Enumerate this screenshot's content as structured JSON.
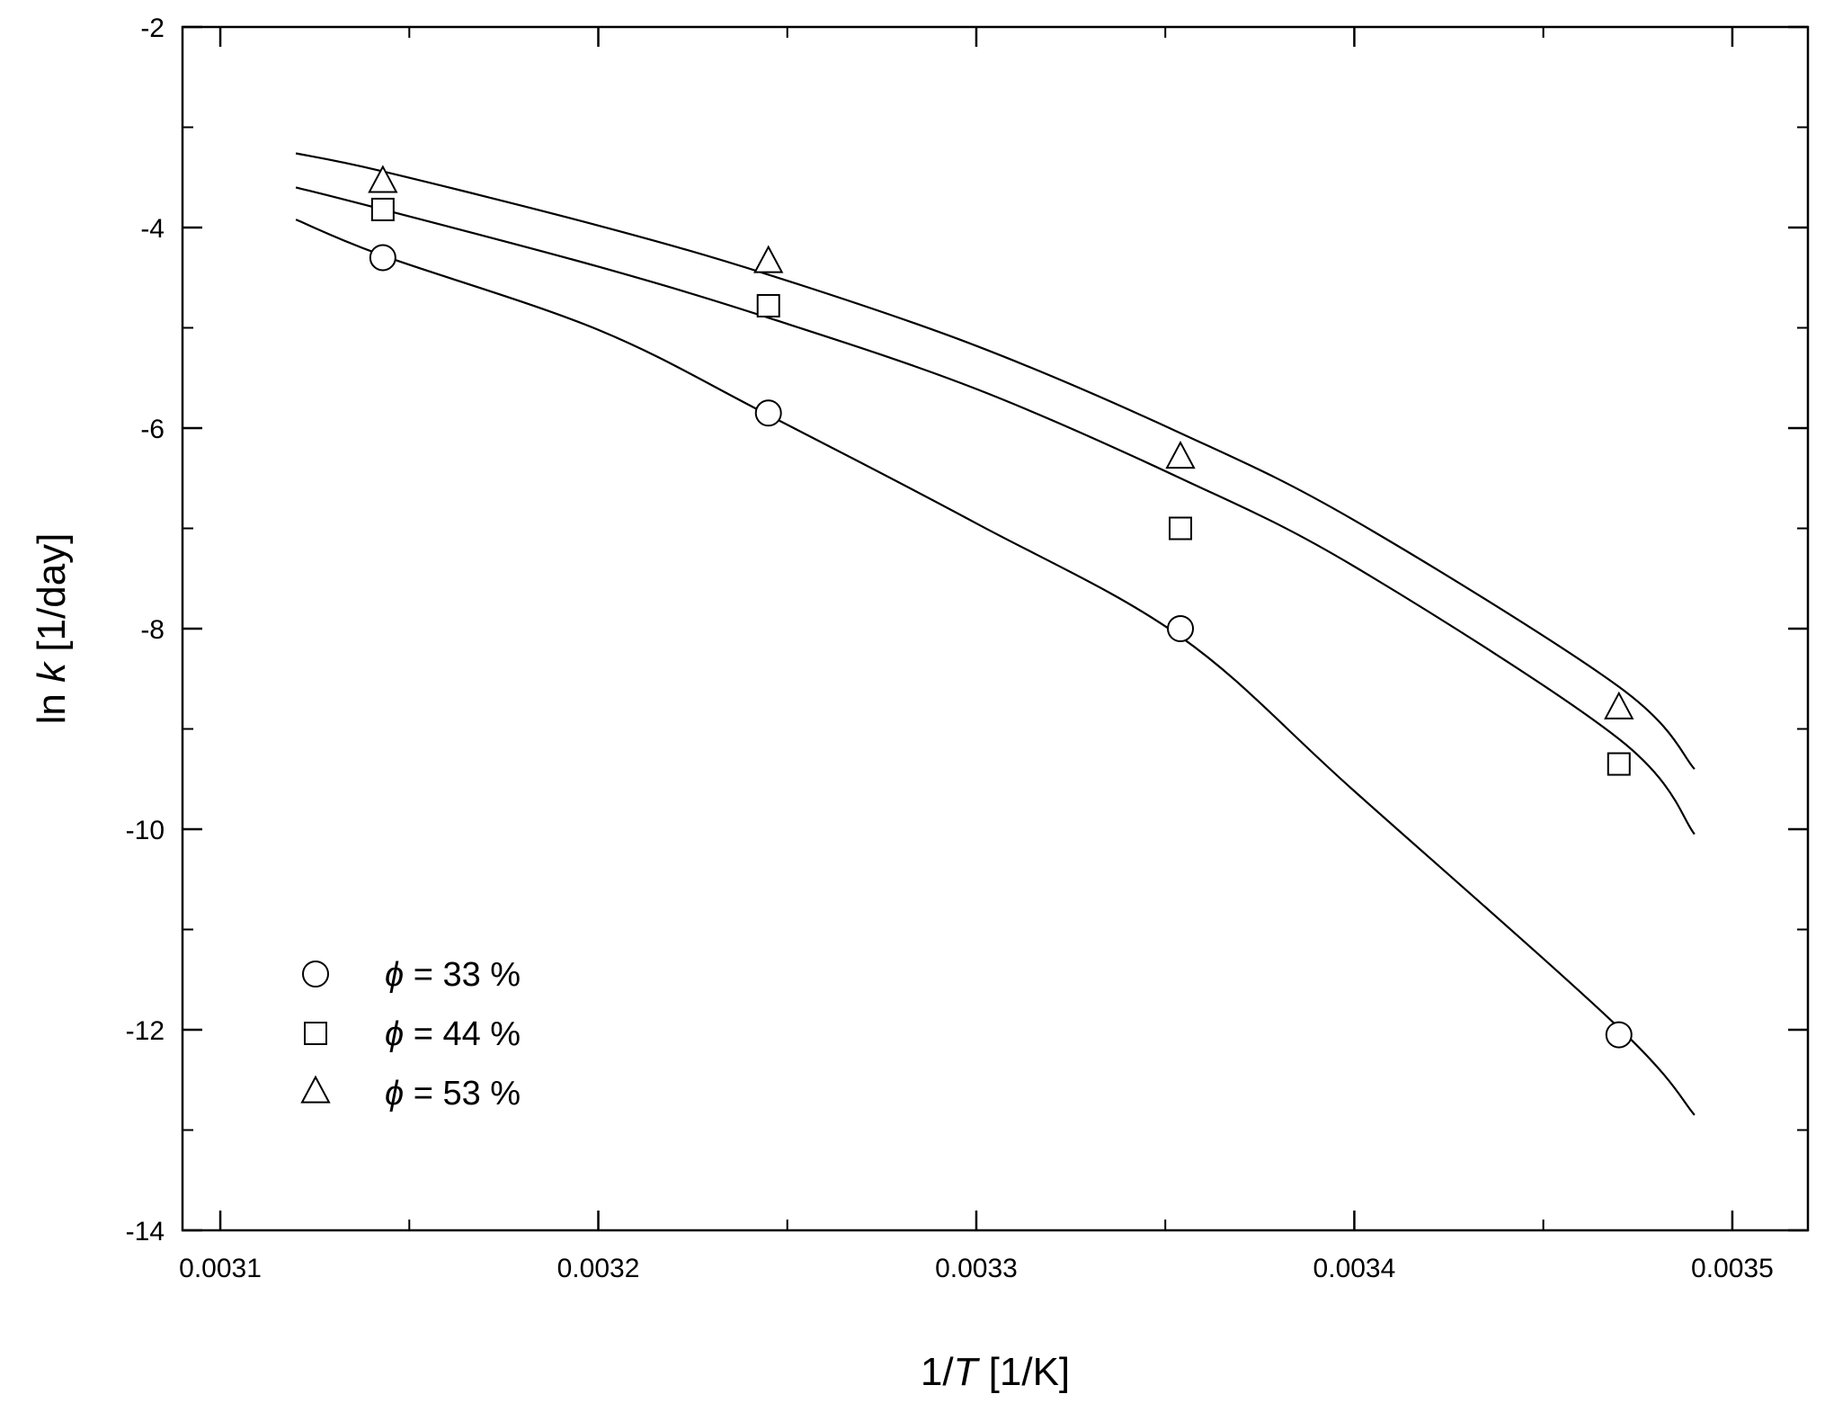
{
  "chart_data": {
    "type": "scatter",
    "xlabel": {
      "pre": "1/",
      "var": "T",
      "post": " [1/K]"
    },
    "ylabel": {
      "pre": "ln ",
      "var": "k",
      "post": "  [1/day]"
    },
    "xlim": [
      0.00309,
      0.00352
    ],
    "ylim": [
      -14,
      -2
    ],
    "x_ticks": [
      0.0031,
      0.0032,
      0.0033,
      0.0034,
      0.0035
    ],
    "x_tick_labels": [
      "0.0031",
      "0.0032",
      "0.0033",
      "0.0034",
      "0.0035"
    ],
    "y_ticks": [
      -2,
      -4,
      -6,
      -8,
      -10,
      -12,
      -14
    ],
    "y_tick_labels": [
      "-2",
      "-4",
      "-6",
      "-8",
      "-10",
      "-12",
      "-14"
    ],
    "legend_position": "bottom-left",
    "series": [
      {
        "name": "ϕ = 33 %",
        "legend_symbol": "ϕ",
        "legend_value": " = 33 %",
        "marker": "circle",
        "x": [
          0.003143,
          0.003245,
          0.003354,
          0.00347
        ],
        "y": [
          -4.3,
          -5.85,
          -8.0,
          -12.05
        ],
        "fit": [
          [
            0.00312,
            -3.92
          ],
          [
            0.003143,
            -4.28
          ],
          [
            0.0032,
            -5.02
          ],
          [
            0.003245,
            -5.87
          ],
          [
            0.0033,
            -6.95
          ],
          [
            0.003354,
            -8.08
          ],
          [
            0.0034,
            -9.62
          ],
          [
            0.00347,
            -11.98
          ],
          [
            0.00349,
            -12.85
          ]
        ]
      },
      {
        "name": "ϕ = 44 %",
        "legend_symbol": "ϕ",
        "legend_value": " = 44 %",
        "marker": "square",
        "x": [
          0.003143,
          0.003245,
          0.003354,
          0.00347
        ],
        "y": [
          -3.82,
          -4.78,
          -7.0,
          -9.35
        ],
        "fit": [
          [
            0.00312,
            -3.6
          ],
          [
            0.003143,
            -3.82
          ],
          [
            0.0032,
            -4.39
          ],
          [
            0.003245,
            -4.9
          ],
          [
            0.0033,
            -5.61
          ],
          [
            0.003354,
            -6.5
          ],
          [
            0.0034,
            -7.38
          ],
          [
            0.00347,
            -9.1
          ],
          [
            0.00349,
            -10.05
          ]
        ]
      },
      {
        "name": "ϕ = 53 %",
        "legend_symbol": "ϕ",
        "legend_value": " = 53 %",
        "marker": "triangle",
        "x": [
          0.003143,
          0.003245,
          0.003354,
          0.00347
        ],
        "y": [
          -3.55,
          -4.35,
          -6.3,
          -8.8
        ],
        "fit": [
          [
            0.00312,
            -3.26
          ],
          [
            0.003143,
            -3.44
          ],
          [
            0.0032,
            -3.98
          ],
          [
            0.003245,
            -4.47
          ],
          [
            0.0033,
            -5.18
          ],
          [
            0.003354,
            -6.05
          ],
          [
            0.0034,
            -6.92
          ],
          [
            0.00347,
            -8.58
          ],
          [
            0.00349,
            -9.4
          ]
        ]
      }
    ]
  }
}
